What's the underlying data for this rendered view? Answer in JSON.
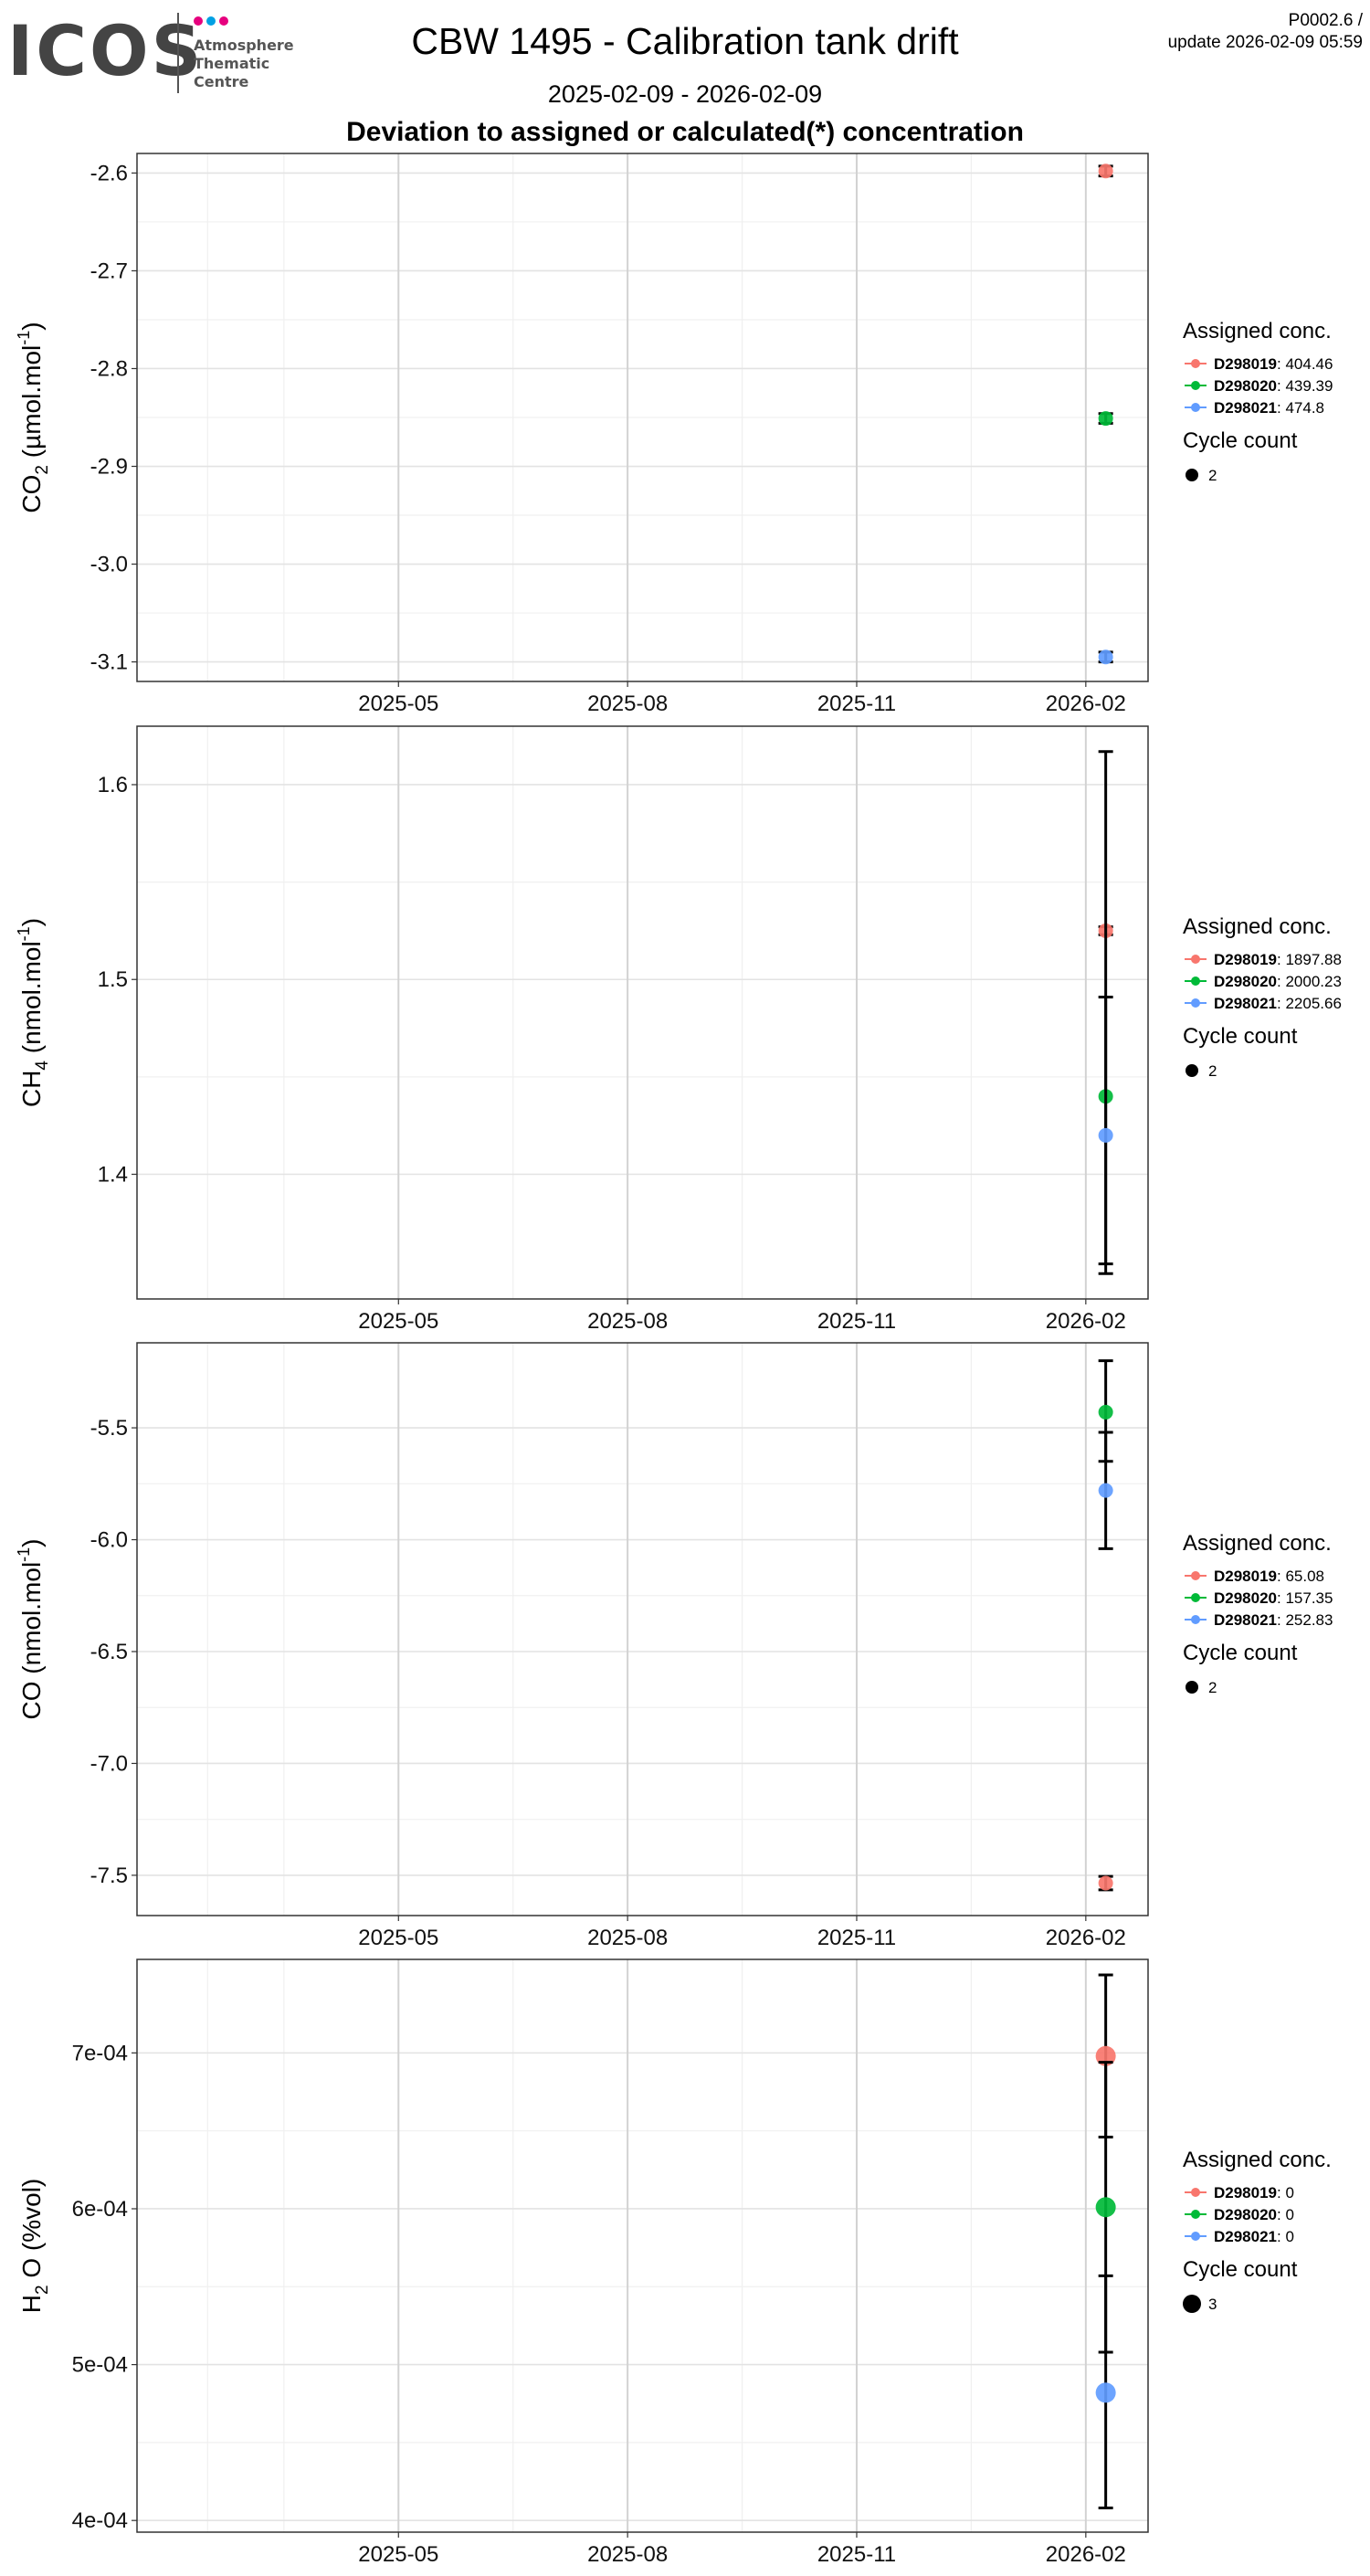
{
  "header": {
    "logo_text": "ICOS",
    "logo_subtitle": [
      "Atmosphere",
      "Thematic",
      "Centre"
    ],
    "logo_dot_colors": [
      "#e6007e",
      "#00a0e3",
      "#e6007e"
    ],
    "title": "CBW 1495 - Calibration tank drift",
    "date_range": "2025-02-09 - 2026-02-09",
    "subtitle": "Deviation to assigned or calculated(*) concentration",
    "version": "P0002.6 /",
    "update": "update  2026-02-09 05:59"
  },
  "colors": {
    "D298019": "#f8766d",
    "D298020": "#00ba38",
    "D298021": "#619cff",
    "errorbar": "#000000"
  },
  "chart_data": [
    {
      "type": "scatter",
      "species": "CO2",
      "ylabel_main": "CO",
      "ylabel_sub": "2",
      "ylabel_unit": "(µmol.mol",
      "ylabel_sup": "-1",
      "ylabel_end": ")",
      "x_ticks": [
        "2025-05",
        "2025-08",
        "2025-11",
        "2026-02"
      ],
      "ylim": [
        -3.12,
        -2.58
      ],
      "y_ticks": [
        -2.6,
        -2.7,
        -2.8,
        -2.9,
        -3.0,
        -3.1
      ],
      "y_tick_labels": [
        "-2.6",
        "-2.7",
        "-2.8",
        "-2.9",
        "-3.0",
        "-3.1"
      ],
      "grid": true,
      "legend_title": "Assigned conc.",
      "size_legend_title": "Cycle count",
      "size_legend_value": "2",
      "series": [
        {
          "name": "D298019",
          "assigned": "404.46",
          "x": "2026-02-09",
          "y": -2.598,
          "err_low": -2.603,
          "err_high": -2.593
        },
        {
          "name": "D298020",
          "assigned": "439.39",
          "x": "2026-02-09",
          "y": -2.851,
          "err_low": -2.856,
          "err_high": -2.846
        },
        {
          "name": "D298021",
          "assigned": "474.8",
          "x": "2026-02-09",
          "y": -3.095,
          "err_low": -3.1,
          "err_high": -3.09
        }
      ]
    },
    {
      "type": "scatter",
      "species": "CH4",
      "ylabel_main": "CH",
      "ylabel_sub": "4",
      "ylabel_unit": "(nmol.mol",
      "ylabel_sup": "-1",
      "ylabel_end": ")",
      "x_ticks": [
        "2025-05",
        "2025-08",
        "2025-11",
        "2026-02"
      ],
      "ylim": [
        1.336,
        1.63
      ],
      "y_ticks": [
        1.4,
        1.5,
        1.6
      ],
      "y_tick_labels": [
        "1.4",
        "1.5",
        "1.6"
      ],
      "grid": true,
      "legend_title": "Assigned conc.",
      "size_legend_title": "Cycle count",
      "size_legend_value": "2",
      "series": [
        {
          "name": "D298019",
          "assigned": "1897.88",
          "x": "2026-02-09",
          "y": 1.525,
          "err_low": 1.523,
          "err_high": 1.527
        },
        {
          "name": "D298020",
          "assigned": "2000.23",
          "x": "2026-02-09",
          "y": 1.44,
          "err_low": 1.349,
          "err_high": 1.617
        },
        {
          "name": "D298021",
          "assigned": "2205.66",
          "x": "2026-02-09",
          "y": 1.42,
          "err_low": 1.354,
          "err_high": 1.491
        }
      ]
    },
    {
      "type": "scatter",
      "species": "CO",
      "ylabel_main": "CO",
      "ylabel_sub": "",
      "ylabel_unit": "(nmol.mol",
      "ylabel_sup": "-1",
      "ylabel_end": ")",
      "x_ticks": [
        "2025-05",
        "2025-08",
        "2025-11",
        "2026-02"
      ],
      "ylim": [
        -7.68,
        -5.12
      ],
      "y_ticks": [
        -5.5,
        -6.0,
        -6.5,
        -7.0,
        -7.5
      ],
      "y_tick_labels": [
        "-5.5",
        "-6.0",
        "-6.5",
        "-7.0",
        "-7.5"
      ],
      "grid": true,
      "legend_title": "Assigned conc.",
      "size_legend_title": "Cycle count",
      "size_legend_value": "2",
      "series": [
        {
          "name": "D298019",
          "assigned": "65.08",
          "x": "2026-02-09",
          "y": -7.535,
          "err_low": -7.565,
          "err_high": -7.505
        },
        {
          "name": "D298020",
          "assigned": "157.35",
          "x": "2026-02-09",
          "y": -5.43,
          "err_low": -5.65,
          "err_high": -5.2
        },
        {
          "name": "D298021",
          "assigned": "252.83",
          "x": "2026-02-09",
          "y": -5.78,
          "err_low": -6.04,
          "err_high": -5.52
        }
      ]
    },
    {
      "type": "scatter",
      "species": "H2O",
      "ylabel_main": "H",
      "ylabel_sub": "2",
      "ylabel_unit": "O (%vol)",
      "ylabel_sup": "",
      "ylabel_end": "",
      "x_ticks": [
        "2025-05",
        "2025-08",
        "2025-11",
        "2026-02"
      ],
      "ylim": [
        0.0003925,
        0.00076
      ],
      "y_ticks": [
        0.0004,
        0.0005,
        0.0006,
        0.0007
      ],
      "y_tick_labels": [
        "4e-04",
        "5e-04",
        "6e-04",
        "7e-04"
      ],
      "grid": true,
      "legend_title": "Assigned conc.",
      "size_legend_title": "Cycle count",
      "size_legend_value": "3",
      "series": [
        {
          "name": "D298019",
          "assigned": "0",
          "x": "2026-02-09",
          "y": 0.000698,
          "err_low": 0.000646,
          "err_high": 0.00075
        },
        {
          "name": "D298020",
          "assigned": "0",
          "x": "2026-02-09",
          "y": 0.000601,
          "err_low": 0.000508,
          "err_high": 0.000694
        },
        {
          "name": "D298021",
          "assigned": "0",
          "x": "2026-02-09",
          "y": 0.000482,
          "err_low": 0.000408,
          "err_high": 0.000557
        }
      ]
    }
  ]
}
